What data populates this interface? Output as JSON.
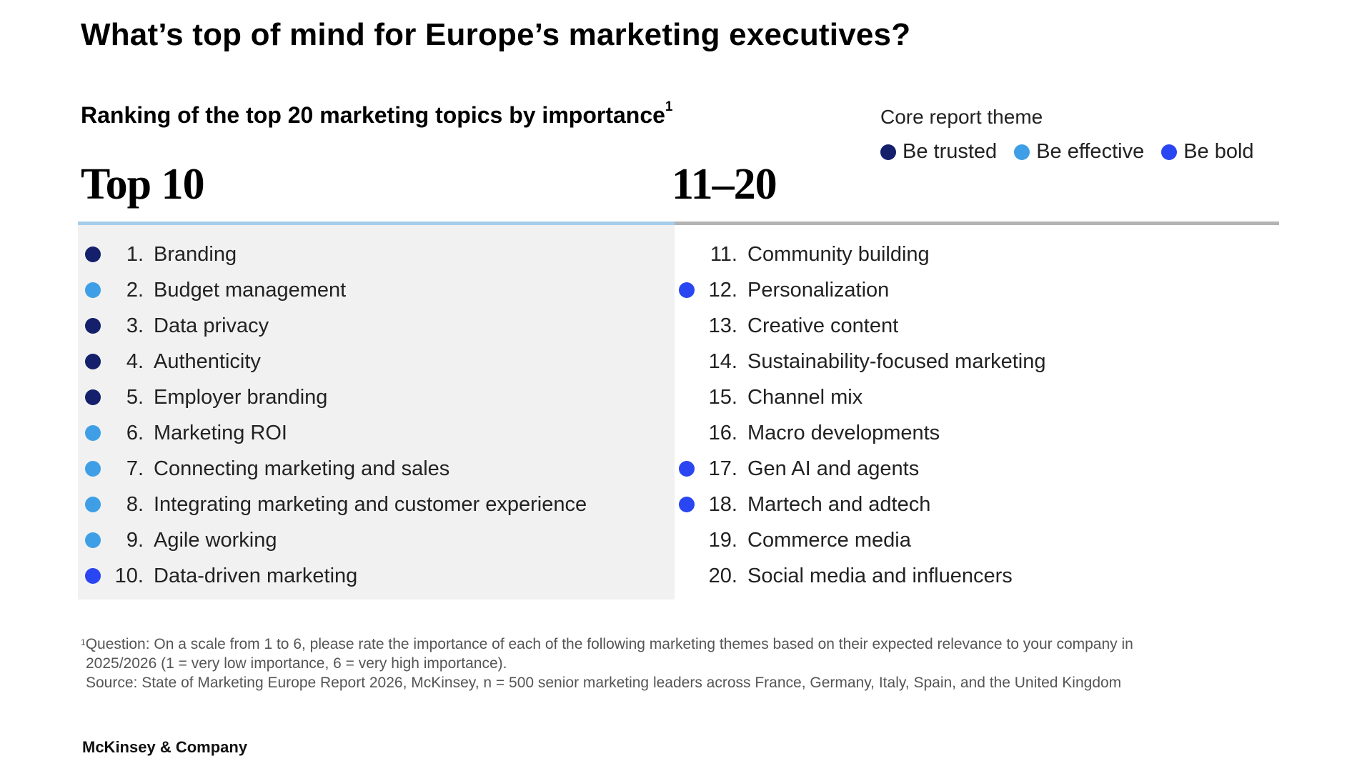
{
  "title": "What’s top of mind for Europe’s marketing executives?",
  "subtitle": "Ranking of the top 20 marketing topics by importance",
  "subtitle_footnote_mark": "1",
  "legend": {
    "title": "Core report theme",
    "items": [
      {
        "label": "Be trusted",
        "color": "#14206b"
      },
      {
        "label": "Be effective",
        "color": "#3f9fe6"
      },
      {
        "label": "Be bold",
        "color": "#2a45f2"
      }
    ]
  },
  "top10": {
    "heading": "Top 10",
    "items": [
      {
        "rank": "1.",
        "label": "Branding",
        "theme": "Be trusted"
      },
      {
        "rank": "2.",
        "label": "Budget management",
        "theme": "Be effective"
      },
      {
        "rank": "3.",
        "label": "Data privacy",
        "theme": "Be trusted"
      },
      {
        "rank": "4.",
        "label": "Authenticity",
        "theme": "Be trusted"
      },
      {
        "rank": "5.",
        "label": "Employer branding",
        "theme": "Be trusted"
      },
      {
        "rank": "6.",
        "label": "Marketing ROI",
        "theme": "Be effective"
      },
      {
        "rank": "7.",
        "label": "Connecting marketing and sales",
        "theme": "Be effective"
      },
      {
        "rank": "8.",
        "label": "Integrating marketing and customer experience",
        "theme": "Be effective"
      },
      {
        "rank": "9.",
        "label": "Agile working",
        "theme": "Be effective"
      },
      {
        "rank": "10.",
        "label": "Data-driven marketing",
        "theme": "Be bold"
      }
    ]
  },
  "next10": {
    "heading": "11–20",
    "items": [
      {
        "rank": "11.",
        "label": "Community building",
        "theme": null
      },
      {
        "rank": "12.",
        "label": "Personalization",
        "theme": "Be bold"
      },
      {
        "rank": "13.",
        "label": "Creative content",
        "theme": null
      },
      {
        "rank": "14.",
        "label": "Sustainability-focused marketing",
        "theme": null
      },
      {
        "rank": "15.",
        "label": "Channel mix",
        "theme": null
      },
      {
        "rank": "16.",
        "label": "Macro developments",
        "theme": null
      },
      {
        "rank": "17.",
        "label": "Gen AI and agents",
        "theme": "Be bold"
      },
      {
        "rank": "18.",
        "label": "Martech and adtech",
        "theme": "Be bold"
      },
      {
        "rank": "19.",
        "label": "Commerce media",
        "theme": null
      },
      {
        "rank": "20.",
        "label": "Social media and influencers",
        "theme": null
      }
    ]
  },
  "footnote": {
    "mark": "1",
    "question_line1": "Question: On a scale from 1 to 6, please rate the importance of each of the following marketing themes based on their expected relevance to your company in",
    "question_line2": "2025/2026 (1 = very low importance, 6 = very high importance).",
    "source": "Source: State of Marketing Europe Report 2026, McKinsey, n = 500 senior marketing leaders across France, Germany, Italy, Spain, and the United Kingdom"
  },
  "brand": "McKinsey & Company"
}
